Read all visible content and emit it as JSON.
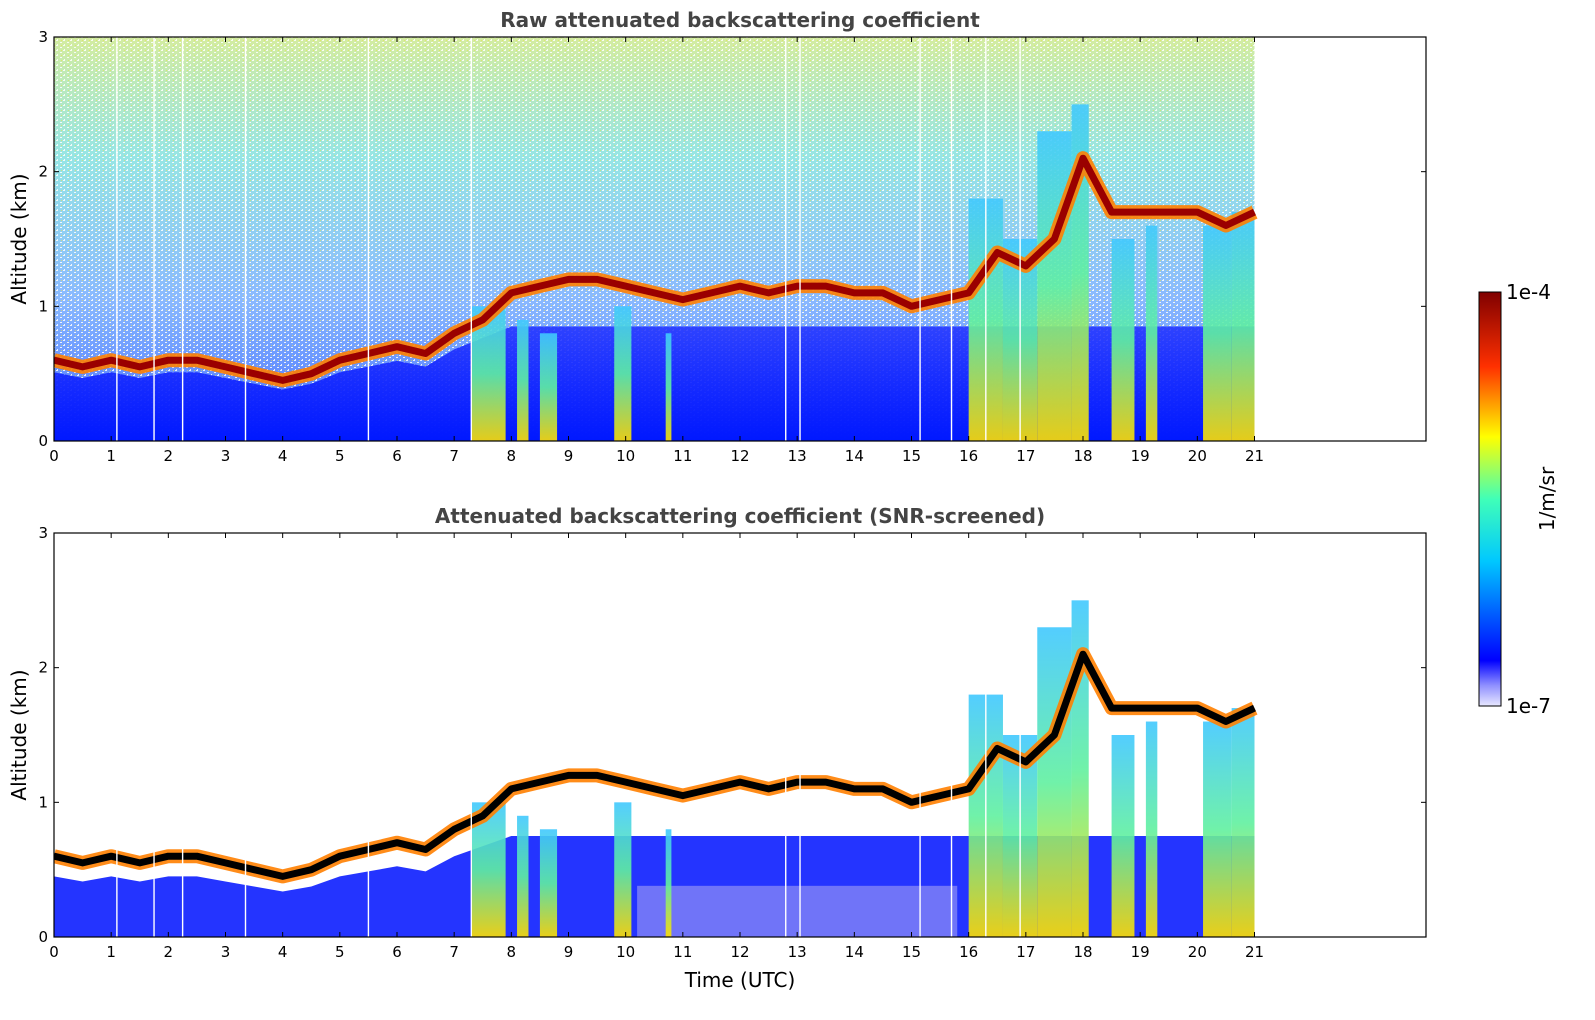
{
  "chart_data": [
    {
      "type": "heatmap",
      "title": "Raw attenuated backscattering coefficient",
      "xlabel": "",
      "ylabel": "Altitude (km)",
      "x_ticks": [
        "0",
        "1",
        "2",
        "3",
        "4",
        "5",
        "6",
        "7",
        "8",
        "9",
        "10",
        "11",
        "12",
        "13",
        "14",
        "15",
        "16",
        "17",
        "18",
        "19",
        "20",
        "21"
      ],
      "y_ticks": [
        "0",
        "1",
        "2",
        "3"
      ],
      "xlim": [
        0,
        24
      ],
      "ylim": [
        0,
        3
      ],
      "data_extent_hours": 21,
      "cloud_layer": {
        "x": [
          0,
          0.5,
          1,
          1.5,
          2,
          2.5,
          3,
          3.5,
          4,
          4.5,
          5,
          5.5,
          6,
          6.5,
          7,
          7.5,
          8,
          8.5,
          9,
          9.5,
          10,
          10.5,
          11,
          11.5,
          12,
          12.5,
          13,
          13.5,
          14,
          14.5,
          15,
          15.5,
          16,
          16.5,
          17,
          17.5,
          18,
          18.5,
          19,
          19.5,
          20,
          20.5,
          21
        ],
        "y": [
          0.6,
          0.55,
          0.6,
          0.55,
          0.6,
          0.6,
          0.55,
          0.5,
          0.45,
          0.5,
          0.6,
          0.65,
          0.7,
          0.65,
          0.8,
          0.9,
          1.1,
          1.15,
          1.2,
          1.2,
          1.15,
          1.1,
          1.05,
          1.1,
          1.15,
          1.1,
          1.15,
          1.15,
          1.1,
          1.1,
          1.0,
          1.05,
          1.1,
          1.4,
          1.3,
          1.5,
          2.1,
          1.7,
          1.7,
          1.7,
          1.7,
          1.6,
          1.7
        ]
      }
    },
    {
      "type": "heatmap",
      "title": "Attenuated backscattering coefficient (SNR-screened)",
      "xlabel": "Time (UTC)",
      "ylabel": "Altitude (km)",
      "x_ticks": [
        "0",
        "1",
        "2",
        "3",
        "4",
        "5",
        "6",
        "7",
        "8",
        "9",
        "10",
        "11",
        "12",
        "13",
        "14",
        "15",
        "16",
        "17",
        "18",
        "19",
        "20",
        "21"
      ],
      "y_ticks": [
        "0",
        "1",
        "2",
        "3"
      ],
      "xlim": [
        0,
        24
      ],
      "ylim": [
        0,
        3
      ],
      "data_extent_hours": 21
    }
  ],
  "colorbar": {
    "max_label": "1e-4",
    "min_label": "1e-7",
    "unit_label": "1/m/sr",
    "colormap": "jet",
    "scale": "log"
  },
  "colors": {
    "title": "#444444",
    "low": "#0a1aff",
    "high": "#8b0000"
  }
}
